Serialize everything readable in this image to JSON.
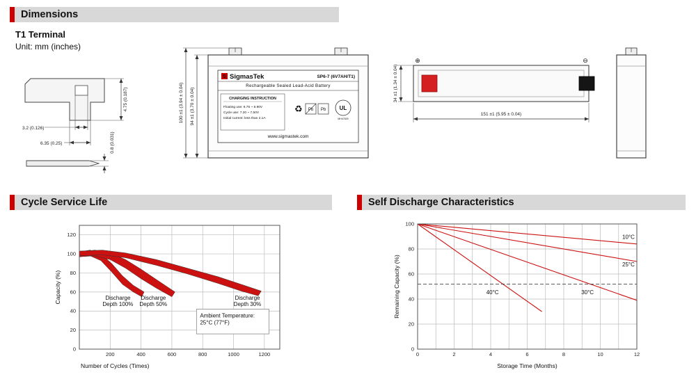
{
  "header": {
    "title": "Dimensions"
  },
  "terminal": {
    "title": "T1 Terminal",
    "unit": "Unit: mm (inches)",
    "dim_height": "4.75 (0.187)",
    "dim_slot": "3.2 (0.126)",
    "dim_width": "6.35 (0.25)",
    "dim_thickness": "0.8 (0.031)"
  },
  "front_view": {
    "dim_total_height": "100 ±1 (3.94 ± 0.04)",
    "dim_case_height": "94 ±1 (3.70 ± 0.04)",
    "label": {
      "brand": "SigmasTek",
      "logo_letter": "S",
      "model": "SP6-7 (6V7AH/T1)",
      "type_line": "Rechargeable Sealed Lead-Acid Battery",
      "charging_title": "CHARGING INSTRUCTION",
      "charging_line1": "Floating use: 6.75 ~ 6.90V",
      "charging_line2": "Cycle use: 7.20 ~ 7.50V",
      "charging_line3": "Initial current: less than 2.1A",
      "recycle_icon": "♻",
      "pb_label": "Pb",
      "ul_label": "UL",
      "ul_number": "MH47829",
      "website": "www.sigmastek.com"
    }
  },
  "top_view": {
    "dim_height": "34 ±1 (1.34 ± 0.04)",
    "dim_width": "151 ±1 (5.95 ± 0.04)",
    "positive": "⊕",
    "negative": "⊖"
  },
  "chart_data": [
    {
      "type": "area",
      "title": "Cycle Service Life",
      "xlabel": "Number of Cycles (Times)",
      "ylabel": "Capacity (%)",
      "xlim": [
        0,
        1300
      ],
      "ylim": [
        0,
        130
      ],
      "xticks": [
        200,
        400,
        600,
        800,
        1000,
        1200
      ],
      "yticks": [
        0,
        20,
        40,
        60,
        80,
        100,
        120
      ],
      "grid": true,
      "color": "#cc1111",
      "bands": [
        {
          "name": "Discharge Depth 100%",
          "upper": [
            [
              0,
              102
            ],
            [
              70,
              104
            ],
            [
              140,
              100
            ],
            [
              210,
              90
            ],
            [
              280,
              77
            ],
            [
              350,
              67
            ],
            [
              420,
              60
            ]
          ],
          "lower": [
            [
              0,
              97
            ],
            [
              70,
              98
            ],
            [
              140,
              93
            ],
            [
              210,
              81
            ],
            [
              280,
              68
            ],
            [
              350,
              60
            ],
            [
              405,
              55
            ]
          ]
        },
        {
          "name": "Discharge Depth 50%",
          "upper": [
            [
              0,
              102
            ],
            [
              100,
              104
            ],
            [
              200,
              101
            ],
            [
              300,
              94
            ],
            [
              400,
              84
            ],
            [
              500,
              73
            ],
            [
              620,
              60
            ]
          ],
          "lower": [
            [
              0,
              97
            ],
            [
              100,
              98
            ],
            [
              200,
              94
            ],
            [
              300,
              85
            ],
            [
              400,
              74
            ],
            [
              500,
              64
            ],
            [
              600,
              55
            ]
          ]
        },
        {
          "name": "Discharge Depth 30%",
          "upper": [
            [
              0,
              103
            ],
            [
              150,
              104
            ],
            [
              300,
              101
            ],
            [
              500,
              94
            ],
            [
              700,
              85
            ],
            [
              900,
              76
            ],
            [
              1050,
              68
            ],
            [
              1180,
              61
            ]
          ],
          "lower": [
            [
              0,
              98
            ],
            [
              150,
              99
            ],
            [
              300,
              96
            ],
            [
              500,
              88
            ],
            [
              700,
              79
            ],
            [
              900,
              69
            ],
            [
              1050,
              61
            ],
            [
              1160,
              56
            ]
          ]
        }
      ],
      "labels": [
        {
          "text": "Discharge\nDepth 100%",
          "x": 250,
          "y": 52
        },
        {
          "text": "Discharge\nDepth 50%",
          "x": 480,
          "y": 52
        },
        {
          "text": "Discharge\nDepth 30%",
          "x": 1090,
          "y": 52
        }
      ],
      "annotation": {
        "lines": [
          "Ambient Temperature:",
          "25°C (77°F)"
        ],
        "x0": 760,
        "x1": 1230,
        "y0": 16,
        "y1": 42
      }
    },
    {
      "type": "line",
      "title": "Self Discharge Characteristics",
      "xlabel": "Storage Time (Months)",
      "ylabel": "Remaining Capacity (%)",
      "xlim": [
        0,
        12
      ],
      "ylim": [
        0,
        100
      ],
      "xticks": [
        0,
        2,
        4,
        6,
        8,
        10,
        12
      ],
      "xgrid": [
        1,
        2,
        3,
        4,
        5,
        6,
        7,
        8,
        9,
        10,
        11
      ],
      "yticks": [
        0,
        20,
        40,
        60,
        80,
        100
      ],
      "grid": true,
      "color": "#cc1111",
      "series": [
        {
          "name": "10°C",
          "points": [
            [
              0,
              100
            ],
            [
              12,
              84
            ]
          ]
        },
        {
          "name": "25°C",
          "points": [
            [
              0,
              100
            ],
            [
              12,
              70
            ]
          ]
        },
        {
          "name": "30°C",
          "points": [
            [
              0,
              100
            ],
            [
              12,
              39
            ]
          ]
        },
        {
          "name": "40°C",
          "points": [
            [
              0,
              100
            ],
            [
              6.8,
              30
            ]
          ]
        }
      ],
      "dashed_line": {
        "y": 52,
        "x": [
          0,
          12
        ]
      },
      "labels": [
        {
          "text": "10°C",
          "x": 11.2,
          "y": 88,
          "anchor": "start"
        },
        {
          "text": "25°C",
          "x": 11.2,
          "y": 66,
          "anchor": "start"
        },
        {
          "text": "40°C",
          "x": 4.1,
          "y": 44
        },
        {
          "text": "30°C",
          "x": 9.3,
          "y": 44
        }
      ]
    }
  ]
}
